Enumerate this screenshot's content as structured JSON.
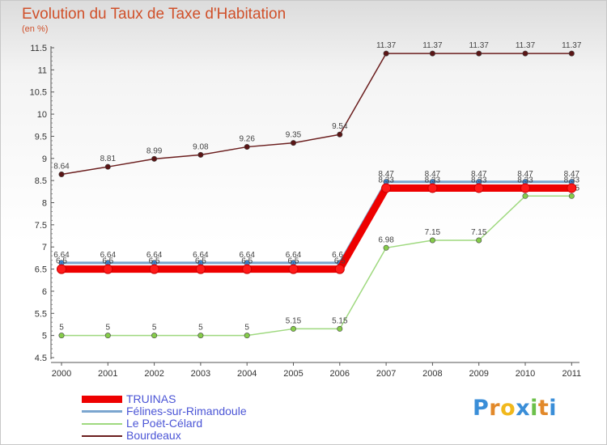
{
  "header": {
    "title": "Evolution du Taux de Taxe d'Habitation",
    "unit": "(en %)"
  },
  "brand": {
    "letters": [
      "P",
      "r",
      "o",
      "x",
      "i",
      "t",
      "i"
    ],
    "colors": [
      "#3a8ed8",
      "#e2892a",
      "#f1b81c",
      "#3a8ed8",
      "#6cc04a",
      "#e2892a",
      "#3a8ed8"
    ]
  },
  "chart_data": {
    "type": "line",
    "title": "Evolution du Taux de Taxe d'Habitation",
    "ylabel": "(en %)",
    "xlabel": "",
    "x": [
      "2000",
      "2001",
      "2002",
      "2003",
      "2004",
      "2005",
      "2006",
      "2007",
      "2008",
      "2009",
      "2010",
      "2011"
    ],
    "ylim": [
      4.5,
      11.5
    ],
    "yticks": [
      "4.5",
      "5",
      "5.5",
      "6",
      "6.5",
      "7",
      "7.5",
      "8",
      "8.5",
      "9",
      "9.5",
      "10",
      "10.5",
      "11",
      "11.5"
    ],
    "grid": false,
    "legend": "bottom-left",
    "series": [
      {
        "name": "Bourdeaux",
        "color": "#6b1e1e",
        "values": [
          8.64,
          8.81,
          8.99,
          9.08,
          9.26,
          9.35,
          9.54,
          11.37,
          11.37,
          11.37,
          11.37,
          11.37
        ],
        "labels": [
          "8.64",
          "8.81",
          "8.99",
          "9.08",
          "9.26",
          "9.35",
          "9.54",
          "11.37",
          "11.37",
          "11.37",
          "11.37",
          "11.37"
        ]
      },
      {
        "name": "Le Poët-Célard",
        "color": "#9fd97f",
        "values": [
          5,
          5,
          5,
          5,
          5,
          5.15,
          5.15,
          6.98,
          7.15,
          7.15,
          8.15,
          8.15
        ],
        "labels": [
          "5",
          "5",
          "5",
          "5",
          "5",
          "5.15",
          "5.15",
          "6.98",
          "7.15",
          "7.15",
          "8.15",
          "8.15"
        ]
      },
      {
        "name": "Félines-sur-Rimandoule",
        "color": "#7ba6cf",
        "values": [
          6.64,
          6.64,
          6.64,
          6.64,
          6.64,
          6.64,
          6.64,
          8.47,
          8.47,
          8.47,
          8.47,
          8.47
        ],
        "labels": [
          "6.64",
          "6.64",
          "6.64",
          "6.64",
          "6.64",
          "6.64",
          "6.64",
          "8.47",
          "8.47",
          "8.47",
          "8.47",
          "8.47"
        ]
      },
      {
        "name": "TRUINAS",
        "color": "#ee0000",
        "values": [
          6.5,
          6.5,
          6.5,
          6.5,
          6.5,
          6.5,
          6.5,
          8.33,
          8.33,
          8.33,
          8.33,
          8.33
        ],
        "labels": [
          "6.5",
          "6.5",
          "6.5",
          "6.5",
          "6.5",
          "6.5",
          "6.5",
          "8.33",
          "8.33",
          "8.33",
          "8.33",
          "8.33"
        ]
      }
    ],
    "legend_order": [
      "TRUINAS",
      "Félines-sur-Rimandoule",
      "Le Poët-Célard",
      "Bourdeaux"
    ]
  }
}
